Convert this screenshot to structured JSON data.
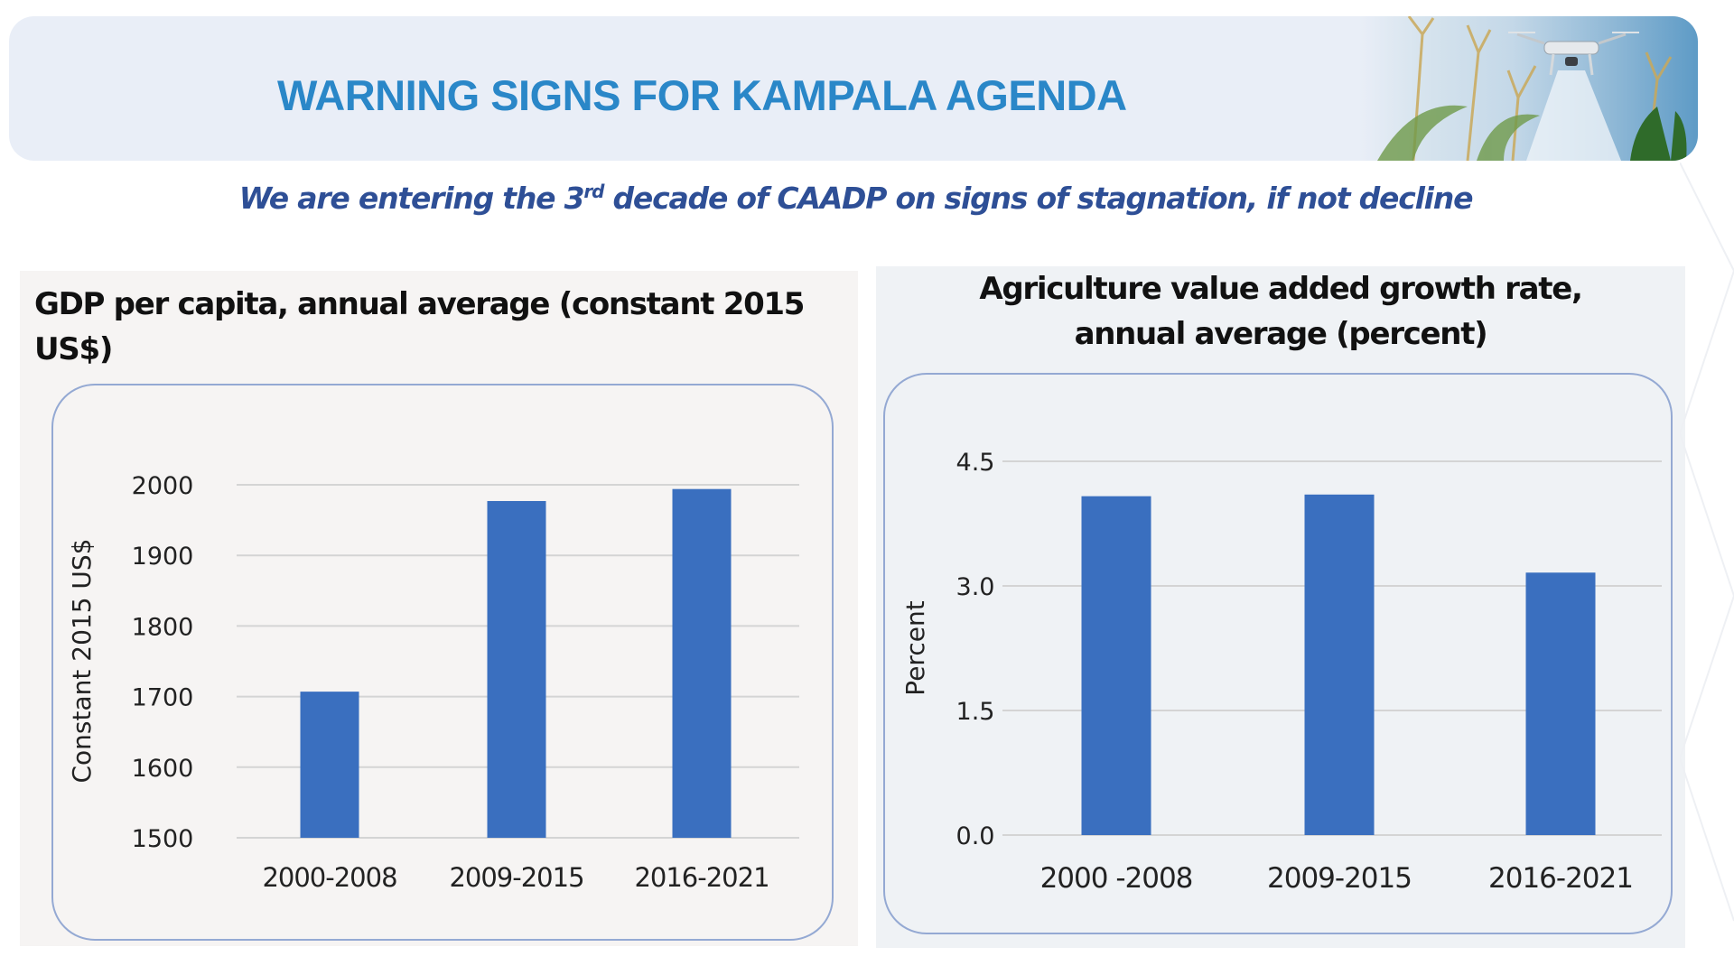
{
  "banner": {
    "title": "WARNING SIGNS FOR KAMPALA AGENDA",
    "image": "drone-over-maize-field-photo"
  },
  "subtitle": {
    "before": "We are entering the 3",
    "sup": "rd",
    "after": " decade of CAADP on signs of stagnation, if not decline"
  },
  "colors": {
    "title": "#2a87c8",
    "subtitle": "#2e4f96",
    "bar": "#3a6fbf",
    "gridline": "#d4d4d4",
    "box_border": "#94a9d3"
  },
  "chart_data": [
    {
      "type": "bar",
      "title": "GDP per capita, annual average (constant 2015 US$)",
      "xlabel": "",
      "ylabel": "Constant 2015 US$",
      "categories": [
        "2000-2008",
        "2009-2015",
        "2016-2021"
      ],
      "values": [
        1707,
        1977,
        1994
      ],
      "ylim": [
        1500,
        2000
      ],
      "yticks": [
        1500,
        1600,
        1700,
        1800,
        1900,
        2000
      ],
      "ytick_labels": [
        "1500",
        "1600",
        "1700",
        "1800",
        "1900",
        "2000"
      ],
      "grid": true,
      "legend": "none"
    },
    {
      "type": "bar",
      "title_lines": [
        "Agriculture value added growth rate,",
        "annual average (percent)"
      ],
      "xlabel": "",
      "ylabel": "Percent",
      "categories": [
        "2000 -2008",
        "2009-2015",
        "2016-2021"
      ],
      "values": [
        4.08,
        4.1,
        3.16
      ],
      "ylim": [
        0,
        4.5
      ],
      "yticks": [
        0,
        1.5,
        3.0,
        4.5
      ],
      "ytick_labels": [
        "0.0",
        "1.5",
        "3.0",
        "4.5"
      ],
      "grid": true,
      "legend": "none"
    }
  ]
}
